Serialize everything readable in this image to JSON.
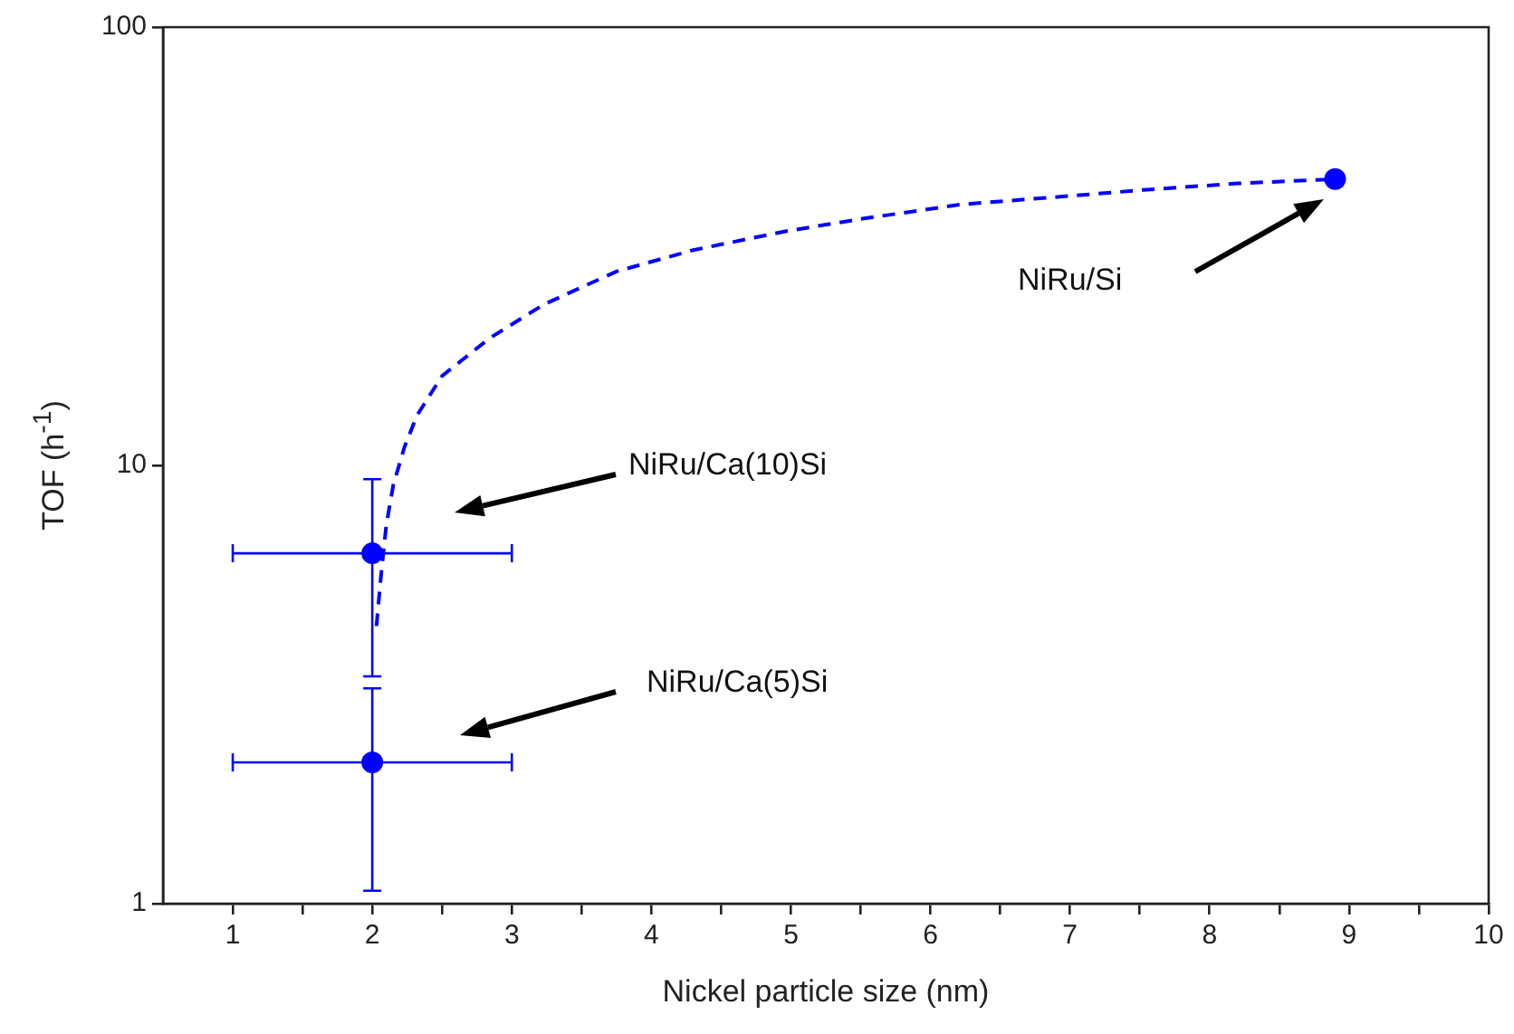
{
  "chart_data": {
    "type": "scatter",
    "xlabel": "Nickel particle size (nm)",
    "ylabel": "TOF (h$^{-1}$)",
    "log": "y",
    "grid": false,
    "legend": false,
    "marker": "circle",
    "xlim": [
      0.5,
      10
    ],
    "xticks": [
      1,
      {
        "value": 1.5,
        "label": null
      },
      2,
      {
        "value": 2.5,
        "label": null
      },
      3,
      {
        "value": 3.5,
        "label": null
      },
      4,
      {
        "value": 4.5,
        "label": null
      },
      5,
      {
        "value": 5.5,
        "label": null
      },
      6,
      {
        "value": 6.5,
        "label": null
      },
      7,
      {
        "value": 7.5,
        "label": null
      },
      8,
      {
        "value": 8.5,
        "label": null
      },
      9,
      {
        "value": 9.5,
        "label": null
      },
      10
    ],
    "ylim": [
      1,
      100
    ],
    "yticks": [
      1,
      10,
      100
    ],
    "series": [
      {
        "type": "scatter",
        "color": "#0000ff",
        "x": [
          2,
          2,
          8.9
        ],
        "values": [
          6.3,
          2.1,
          45
        ],
        "errors": [
          [
            3.3,
            9.3
          ],
          [
            1.07,
            3.1
          ],
          null
        ],
        "xerrors": [
          [
            1,
            3
          ],
          [
            1,
            3
          ],
          null
        ]
      },
      {
        "type": "line",
        "color": "#0000ff",
        "line_style": "dashed",
        "marker": "none",
        "x": [
          2.03,
          2.06,
          2.1,
          2.15,
          2.23,
          2.32,
          2.5,
          2.84,
          3.23,
          3.75,
          4.3,
          4.96,
          5.5,
          6.22,
          7,
          7.52,
          8.2,
          8.9
        ],
        "values": [
          4.3,
          5.5,
          7.3,
          9,
          11,
          13,
          16,
          19.5,
          23.3,
          27.7,
          31,
          34.2,
          36.5,
          39.4,
          41.2,
          42.5,
          44,
          45
        ]
      }
    ],
    "annotations": [
      "NiRu/Si",
      "NiRu/Ca(10)Si",
      "NiRu/Ca(5)Si"
    ]
  }
}
